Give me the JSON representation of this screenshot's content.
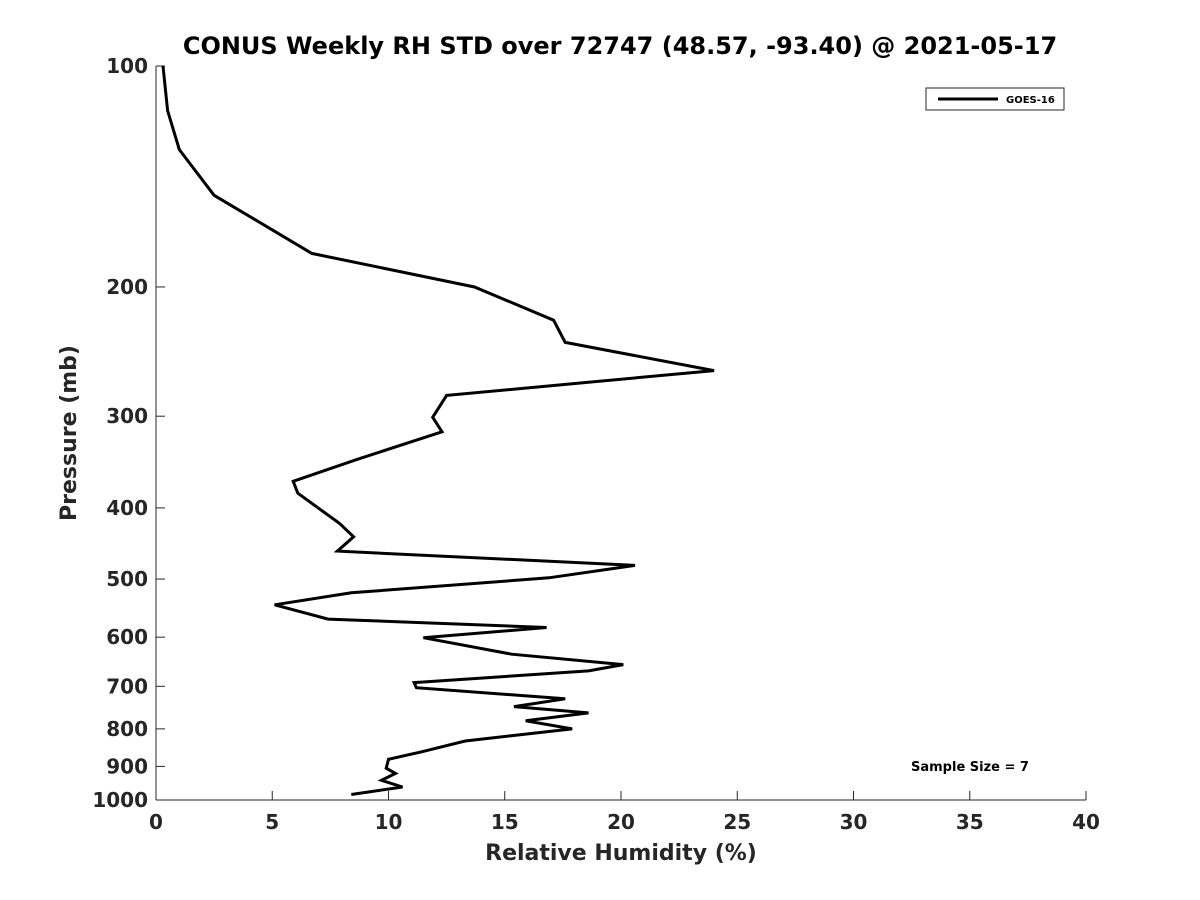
{
  "chart_data": {
    "type": "line",
    "title": "CONUS Weekly RH STD over 72747 (48.57, -93.40) @ 2021-05-17",
    "xlabel": "Relative Humidity (%)",
    "ylabel": "Pressure (mb)",
    "xlim": [
      0,
      40
    ],
    "ylim": [
      100,
      1000
    ],
    "yscale": "log",
    "y_reversed": true,
    "x_ticks": [
      0,
      5,
      10,
      15,
      20,
      25,
      30,
      35,
      40
    ],
    "x_tick_labels": [
      "0",
      "5",
      "10",
      "15",
      "20",
      "25",
      "30",
      "35",
      "40"
    ],
    "y_ticks": [
      100,
      200,
      300,
      400,
      500,
      600,
      700,
      800,
      900,
      1000
    ],
    "y_tick_labels": [
      "100",
      "200",
      "300",
      "400",
      "500",
      "600",
      "700",
      "800",
      "900",
      "1000"
    ],
    "grid": false,
    "legend_position": "top-right",
    "series": [
      {
        "name": "GOES-16",
        "color": "#000000",
        "x": [
          0.3,
          0.5,
          1.0,
          2.5,
          6.7,
          13.7,
          17.1,
          17.6,
          24.0,
          12.5,
          11.9,
          12.3,
          8.6,
          5.9,
          6.1,
          7.9,
          8.5,
          7.8,
          20.6,
          16.9,
          8.4,
          5.1,
          7.4,
          16.8,
          11.5,
          15.3,
          20.1,
          18.6,
          11.1,
          11.2,
          17.6,
          15.4,
          18.6,
          15.9,
          17.9,
          13.3,
          11.4,
          10.0,
          9.9,
          10.3,
          9.7,
          10.6,
          8.4
        ],
        "y": [
          100,
          115,
          130,
          150,
          180,
          200,
          222,
          238,
          260,
          281,
          301,
          315,
          344,
          368,
          382,
          420,
          438,
          458,
          479,
          498,
          522,
          542,
          567,
          582,
          601,
          633,
          654,
          667,
          692,
          703,
          728,
          746,
          761,
          780,
          800,
          831,
          860,
          880,
          905,
          920,
          940,
          960,
          983
        ]
      }
    ],
    "annotations": [
      "Sample Size = 7"
    ]
  }
}
